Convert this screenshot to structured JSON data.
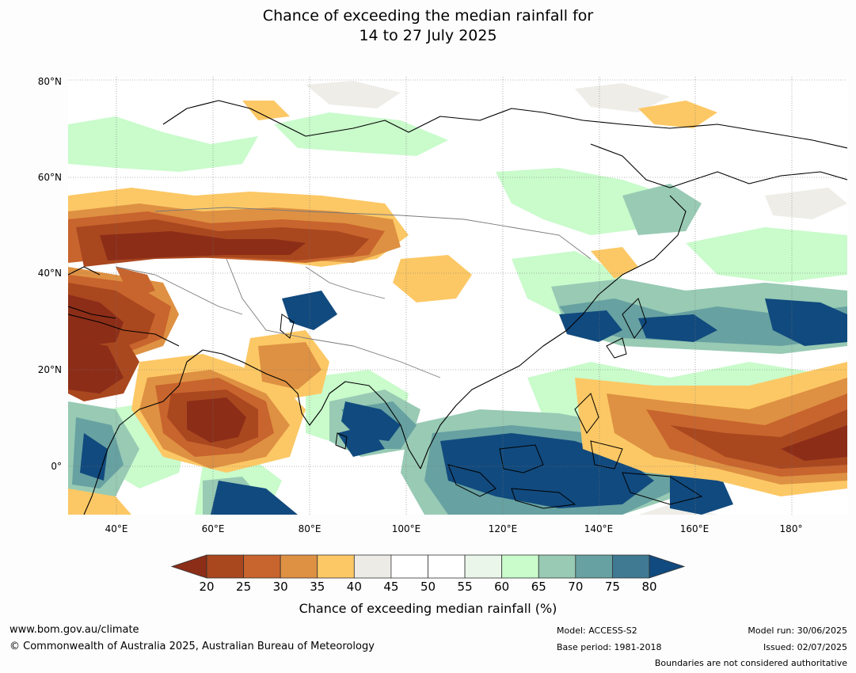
{
  "title_line1": "Chance of exceeding the median rainfall for",
  "title_line2": "14 to 27 July 2025",
  "map": {
    "lat_labels": [
      "80°N",
      "60°N",
      "40°N",
      "20°N",
      "0°"
    ],
    "lon_labels": [
      "40°E",
      "60°E",
      "80°E",
      "100°E",
      "120°E",
      "140°E",
      "160°E",
      "180°"
    ],
    "extent": {
      "lon_min": 30,
      "lon_max": 191,
      "lat_min": -10,
      "lat_max": 80
    }
  },
  "colorbar": {
    "title": "Chance of exceeding median rainfall (%)",
    "ticks": [
      "20",
      "25",
      "30",
      "35",
      "40",
      "45",
      "50",
      "55",
      "60",
      "65",
      "70",
      "75",
      "80"
    ],
    "under_color": "#8c2d18",
    "over_color": "#114a7e",
    "colors": [
      "#a9471f",
      "#c8642d",
      "#de9142",
      "#fcc865",
      "#ecebe6",
      "#ffffff",
      "#ffffff",
      "#eaf6ea",
      "#c9fbcb",
      "#98cab4",
      "#67a1a1",
      "#3f7a92"
    ]
  },
  "footer": {
    "url": "www.bom.gov.au/climate",
    "copyright": "© Commonwealth of Australia 2025, Australian Bureau of Meteorology",
    "model": "Model: ACCESS-S2",
    "base_period": "Base period: 1981-2018",
    "model_run": "Model run: 30/06/2025",
    "issued": "Issued: 02/07/2025",
    "disclaimer": "Boundaries are not considered authoritative"
  }
}
